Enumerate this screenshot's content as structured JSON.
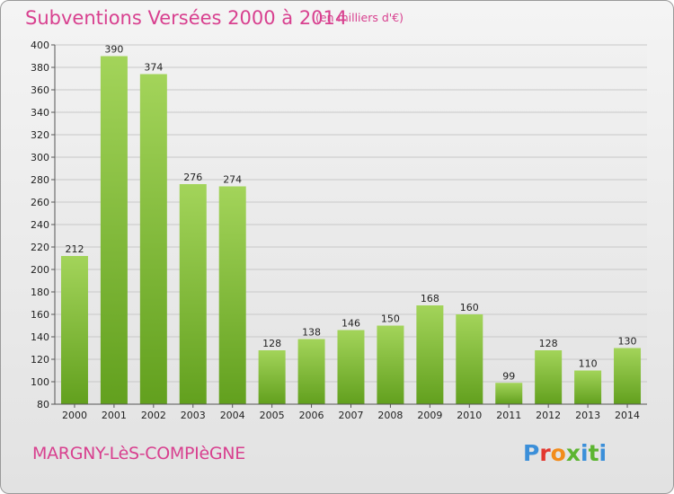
{
  "header": {
    "title": "Subventions Versées 2000 à 2014",
    "subtitle": "(en milliers d'€)"
  },
  "footer": {
    "commune": "MARGNY-LèS-COMPIèGNE",
    "logo_text": "Proxiti"
  },
  "colors": {
    "title": "#d8408f",
    "bar_light": "#a3d45a",
    "bar_dark": "#62a01e",
    "grid": "#c8c8c8"
  },
  "chart_data": {
    "type": "bar",
    "title": "Subventions Versées 2000 à 2014",
    "subtitle": "(en milliers d'€)",
    "categories": [
      "2000",
      "2001",
      "2002",
      "2003",
      "2004",
      "2005",
      "2006",
      "2007",
      "2008",
      "2009",
      "2010",
      "2011",
      "2012",
      "2013",
      "2014"
    ],
    "values": [
      212,
      390,
      374,
      276,
      274,
      128,
      138,
      146,
      150,
      168,
      160,
      99,
      128,
      110,
      130
    ],
    "ylim": [
      80,
      400
    ],
    "yticks": [
      80,
      100,
      120,
      140,
      160,
      180,
      200,
      220,
      240,
      260,
      280,
      300,
      320,
      340,
      360,
      380,
      400
    ],
    "grid": true,
    "xlabel": "",
    "ylabel": ""
  }
}
